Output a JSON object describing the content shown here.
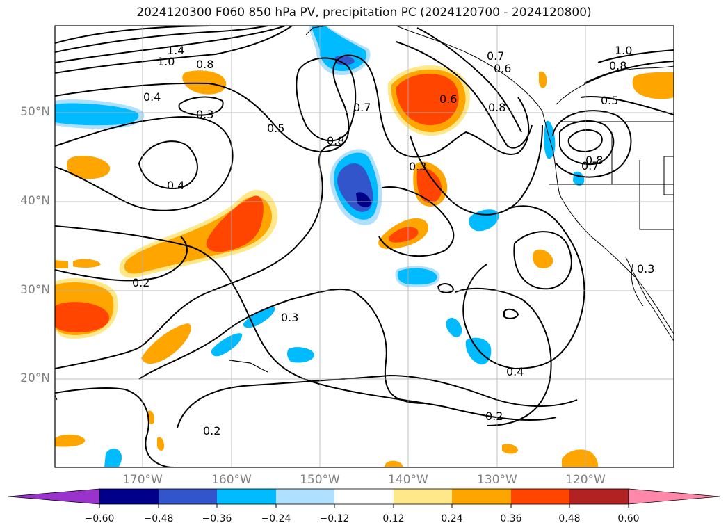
{
  "title": "2024120300 F060 850 hPa PV, precipitation PC (2024120700 - 2024120800)",
  "map": {
    "lat_labels": [
      "50°N",
      "40°N",
      "30°N",
      "20°N"
    ],
    "lon_labels": [
      "170°W",
      "160°W",
      "150°W",
      "140°W",
      "130°W",
      "120°W"
    ],
    "contour_labels": [
      "1.4",
      "1.0",
      "0.8",
      "0.4",
      "0.3",
      "0.5",
      "0.4",
      "0.2",
      "0.8",
      "0.7",
      "0.3",
      "0.6",
      "0.8",
      "0.6",
      "0.7",
      "0.5",
      "1.0",
      "0.8",
      "0.8",
      "0.7",
      "0.3",
      "0.3",
      "0.4",
      "0.2",
      "0.2"
    ]
  },
  "colorbar": {
    "ticks": [
      "−0.60",
      "−0.48",
      "−0.36",
      "−0.24",
      "−0.12",
      "0.12",
      "0.24",
      "0.36",
      "0.48",
      "0.60"
    ],
    "colors": [
      "#9933cc",
      "#00008b",
      "#3355cc",
      "#00bbff",
      "#b0e0ff",
      "#ffffff",
      "#ffe88a",
      "#ffa500",
      "#ff4500",
      "#b22222",
      "#ff88aa"
    ]
  }
}
